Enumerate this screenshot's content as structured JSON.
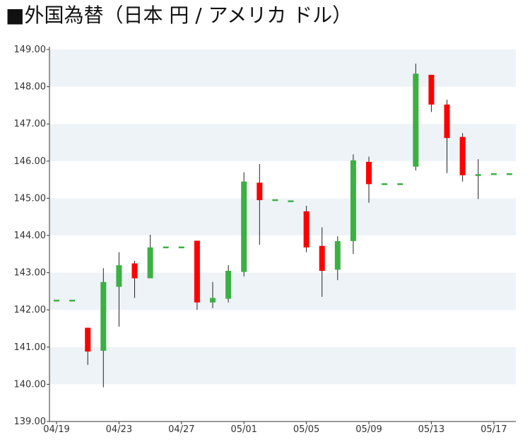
{
  "chart_data": {
    "type": "candlestick",
    "title": "■外国為替（日本 円 / アメリカ ドル）",
    "xlabel": "",
    "ylabel": "",
    "ylim": [
      139,
      149
    ],
    "y_ticks": [
      "139.00",
      "140.00",
      "141.00",
      "142.00",
      "143.00",
      "144.00",
      "145.00",
      "146.00",
      "147.00",
      "148.00",
      "149.00"
    ],
    "x_ticks": [
      "04/19",
      "04/23",
      "04/27",
      "05/01",
      "05/05",
      "05/09",
      "05/13",
      "05/17"
    ],
    "grid": "horizontal alternating bands",
    "legend": "none",
    "colors": {
      "up": "#3cb043",
      "down": "#ff0000",
      "band": "#eef3f8",
      "axis": "#333333",
      "wick": "#222222"
    },
    "series": [
      {
        "date": "04/19",
        "open": 142.25,
        "high": 142.25,
        "low": 142.25,
        "close": 142.25
      },
      {
        "date": "04/20",
        "open": 142.25,
        "high": 142.25,
        "low": 142.25,
        "close": 142.25
      },
      {
        "date": "04/21",
        "open": 141.52,
        "high": 141.52,
        "low": 140.52,
        "close": 140.88
      },
      {
        "date": "04/22",
        "open": 140.9,
        "high": 143.12,
        "low": 139.92,
        "close": 142.75
      },
      {
        "date": "04/23",
        "open": 142.62,
        "high": 143.55,
        "low": 141.55,
        "close": 143.2
      },
      {
        "date": "04/24",
        "open": 143.25,
        "high": 143.32,
        "low": 142.32,
        "close": 142.85
      },
      {
        "date": "04/25",
        "open": 142.85,
        "high": 144.02,
        "low": 142.85,
        "close": 143.68
      },
      {
        "date": "04/26",
        "open": 143.68,
        "high": 143.68,
        "low": 143.68,
        "close": 143.68
      },
      {
        "date": "04/27",
        "open": 143.68,
        "high": 143.68,
        "low": 143.68,
        "close": 143.68
      },
      {
        "date": "04/28",
        "open": 143.86,
        "high": 143.86,
        "low": 142.0,
        "close": 142.2
      },
      {
        "date": "04/29",
        "open": 142.2,
        "high": 142.75,
        "low": 142.05,
        "close": 142.32
      },
      {
        "date": "04/30",
        "open": 142.3,
        "high": 143.2,
        "low": 142.2,
        "close": 143.05
      },
      {
        "date": "05/01",
        "open": 143.02,
        "high": 145.7,
        "low": 142.9,
        "close": 145.45
      },
      {
        "date": "05/02",
        "open": 145.42,
        "high": 145.92,
        "low": 143.75,
        "close": 144.95
      },
      {
        "date": "05/03",
        "open": 144.95,
        "high": 144.95,
        "low": 144.95,
        "close": 144.95
      },
      {
        "date": "05/04",
        "open": 144.92,
        "high": 144.92,
        "low": 144.92,
        "close": 144.92
      },
      {
        "date": "05/05",
        "open": 144.65,
        "high": 144.8,
        "low": 143.55,
        "close": 143.68
      },
      {
        "date": "05/06",
        "open": 143.72,
        "high": 144.22,
        "low": 142.35,
        "close": 143.05
      },
      {
        "date": "05/07",
        "open": 143.08,
        "high": 143.98,
        "low": 142.8,
        "close": 143.85
      },
      {
        "date": "05/08",
        "open": 143.85,
        "high": 146.18,
        "low": 143.5,
        "close": 146.02
      },
      {
        "date": "05/09",
        "open": 145.98,
        "high": 146.12,
        "low": 144.88,
        "close": 145.38
      },
      {
        "date": "05/10",
        "open": 145.38,
        "high": 145.38,
        "low": 145.38,
        "close": 145.38
      },
      {
        "date": "05/11",
        "open": 145.38,
        "high": 145.38,
        "low": 145.38,
        "close": 145.38
      },
      {
        "date": "05/12",
        "open": 145.85,
        "high": 148.62,
        "low": 145.75,
        "close": 148.35
      },
      {
        "date": "05/13",
        "open": 148.32,
        "high": 148.32,
        "low": 147.32,
        "close": 147.52
      },
      {
        "date": "05/14",
        "open": 147.52,
        "high": 147.65,
        "low": 145.68,
        "close": 146.62
      },
      {
        "date": "05/15",
        "open": 146.65,
        "high": 146.75,
        "low": 145.45,
        "close": 145.62
      },
      {
        "date": "05/16",
        "open": 145.6,
        "high": 146.05,
        "low": 144.98,
        "close": 145.65
      },
      {
        "date": "05/17",
        "open": 145.65,
        "high": 145.65,
        "low": 145.65,
        "close": 145.65
      },
      {
        "date": "05/18",
        "open": 145.65,
        "high": 145.65,
        "low": 145.65,
        "close": 145.65
      }
    ]
  }
}
